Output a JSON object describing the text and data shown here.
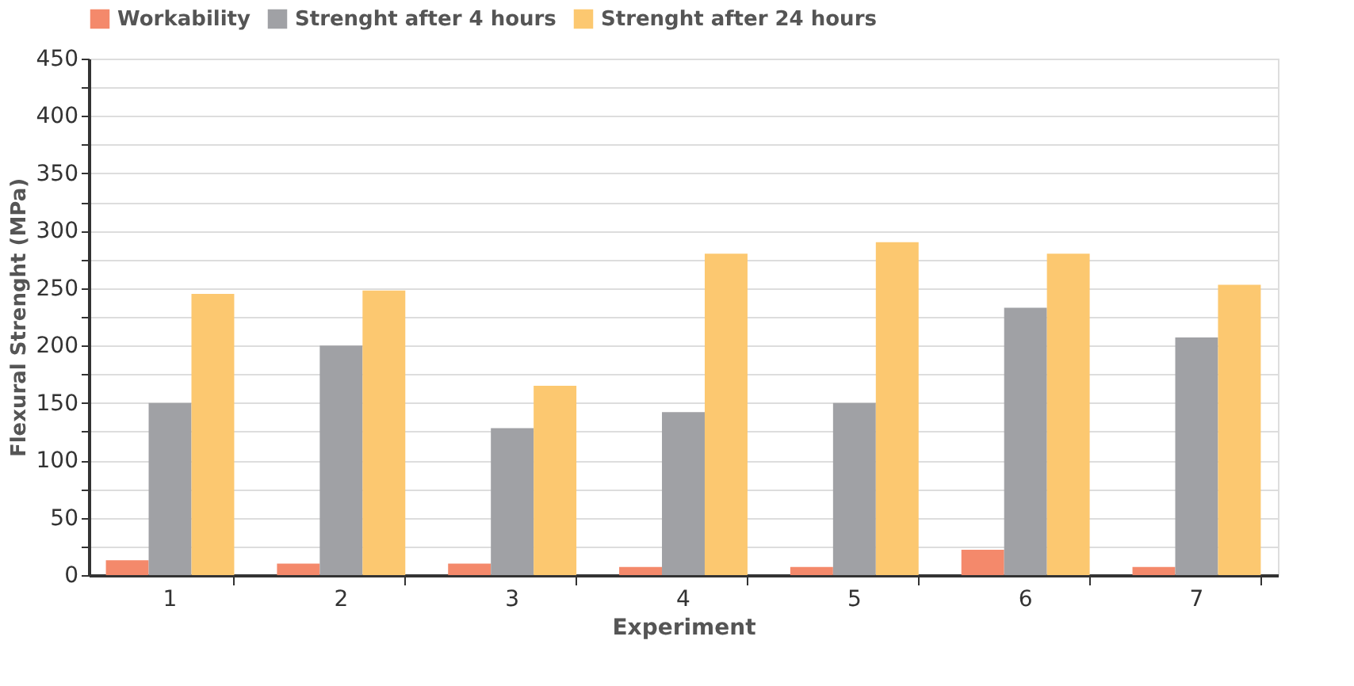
{
  "chart_data": {
    "type": "bar",
    "xlabel": "Experiment",
    "ylabel": "Flexural Strenght (MPa)",
    "categories": [
      "1",
      "2",
      "3",
      "4",
      "5",
      "6",
      "7"
    ],
    "series": [
      {
        "name": "Workability",
        "color": "#f4896b",
        "values": [
          13,
          10,
          10,
          7,
          7,
          22,
          7
        ]
      },
      {
        "name": "Strenght after 4 hours",
        "color": "#a0a1a5",
        "values": [
          150,
          200,
          128,
          142,
          150,
          233,
          207
        ]
      },
      {
        "name": "Strenght after 24 hours",
        "color": "#fcc870",
        "values": [
          245,
          248,
          165,
          280,
          290,
          280,
          253
        ]
      }
    ],
    "ylim": [
      0,
      450
    ],
    "yticks": [
      0,
      {
        "value": 25,
        "label": null
      },
      50,
      {
        "value": 75,
        "label": null
      },
      100,
      {
        "value": 125,
        "label": null
      },
      150,
      {
        "value": 175,
        "label": null
      },
      200,
      {
        "value": 225,
        "label": null
      },
      250,
      {
        "value": 275,
        "label": null
      },
      300,
      {
        "value": 325,
        "label": null
      },
      350,
      {
        "value": 375,
        "label": null
      },
      400,
      {
        "value": 425,
        "label": null
      },
      450
    ],
    "grid": "y",
    "legend": "top"
  }
}
